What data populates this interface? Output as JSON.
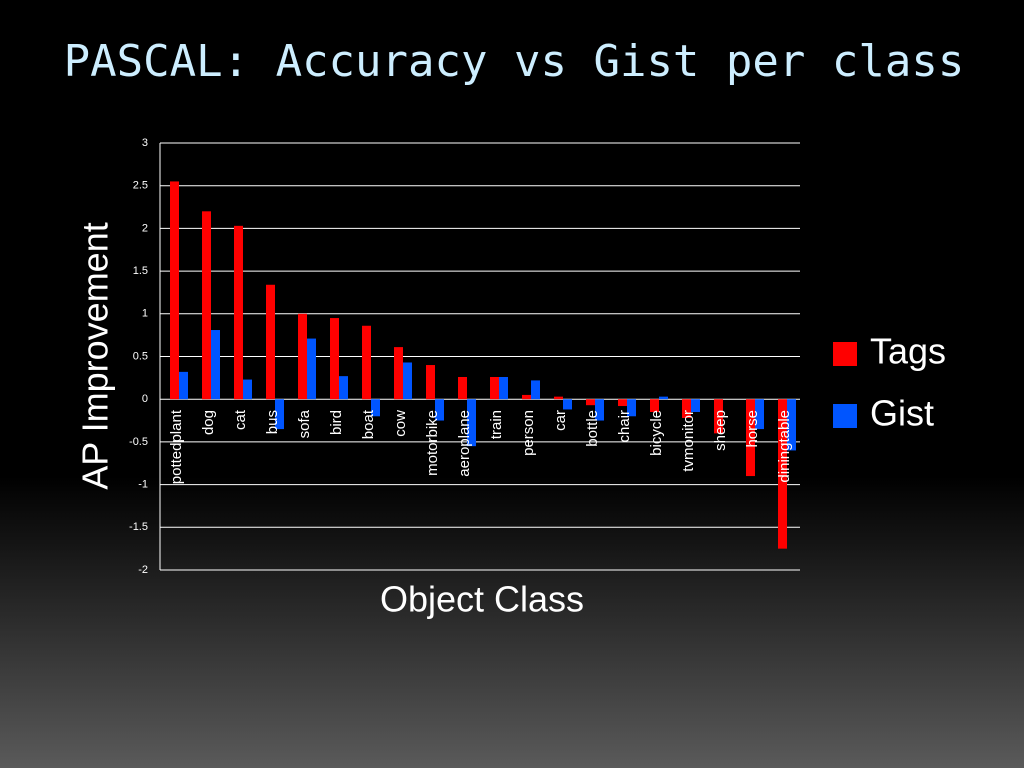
{
  "chart_data": {
    "type": "bar",
    "title": "PASCAL: Accuracy vs Gist per class",
    "x_label": "Object Class",
    "y_label": "AP Improvement",
    "categories": [
      "pottedplant",
      "dog",
      "cat",
      "bus",
      "sofa",
      "bird",
      "boat",
      "cow",
      "motorbike",
      "aeroplane",
      "train",
      "person",
      "car",
      "bottle",
      "chair",
      "bicycle",
      "tvmonitor",
      "sheep",
      "horse",
      "diningtable"
    ],
    "series": [
      {
        "name": "Tags",
        "color": "#ff0000",
        "values": [
          2.55,
          2.2,
          2.03,
          1.34,
          1.0,
          0.95,
          0.86,
          0.61,
          0.4,
          0.26,
          0.26,
          0.05,
          0.03,
          -0.07,
          -0.08,
          -0.15,
          -0.22,
          -0.4,
          -0.9,
          -1.75
        ]
      },
      {
        "name": "Gist",
        "color": "#0055ff",
        "values": [
          0.32,
          0.81,
          0.23,
          -0.35,
          0.71,
          0.27,
          -0.2,
          0.43,
          -0.25,
          -0.55,
          0.26,
          0.22,
          -0.12,
          -0.25,
          -0.2,
          0.03,
          -0.15,
          0,
          -0.35,
          -0.6
        ]
      }
    ],
    "ylim": [
      -2,
      3
    ],
    "yticks": [
      3,
      2.5,
      2,
      1.5,
      1,
      0.5,
      0,
      -0.5,
      -1,
      -1.5,
      -2
    ],
    "grid": true,
    "legend": "right"
  }
}
